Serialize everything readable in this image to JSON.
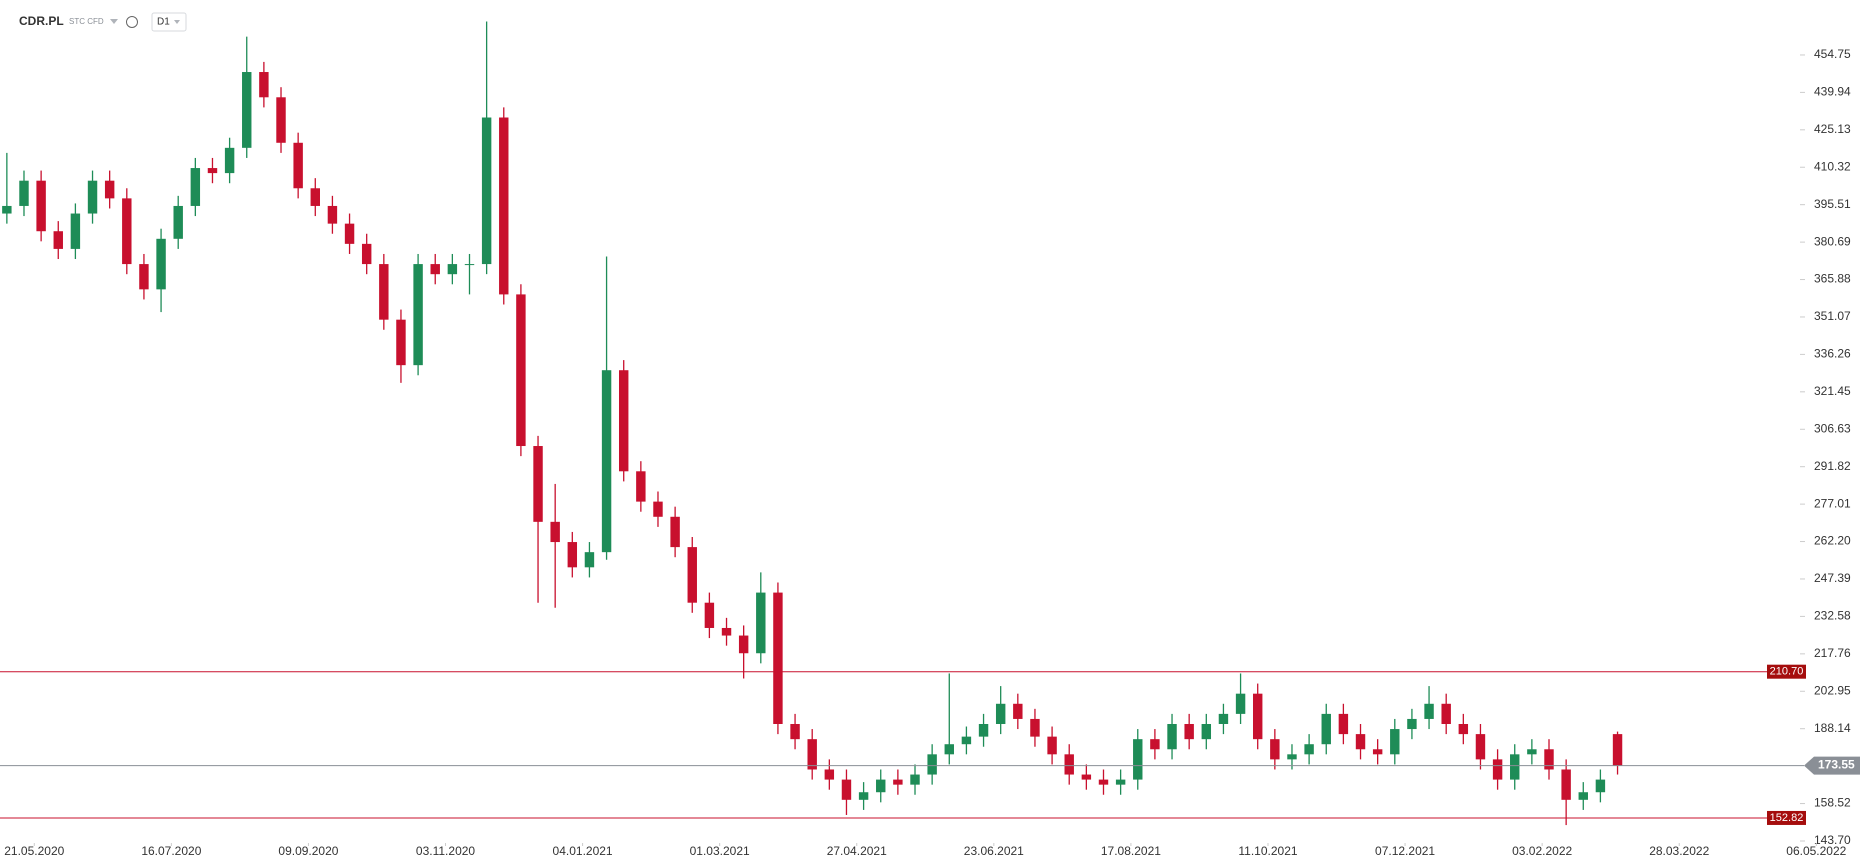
{
  "chart_data": {
    "type": "candlestick",
    "title": "CDR.PL",
    "subtitle": "STC CFD",
    "timeframe": "D1",
    "up_color": "#1e8c57",
    "down_color": "#c8102e",
    "xlim": [
      0,
      544.5
    ],
    "xticks": [
      {
        "value": 10,
        "label": "21.05.2020"
      },
      {
        "value": 50,
        "label": "16.07.2020"
      },
      {
        "value": 90,
        "label": "09.09.2020"
      },
      {
        "value": 130,
        "label": "03.11.2020"
      },
      {
        "value": 170,
        "label": "04.01.2021"
      },
      {
        "value": 210,
        "label": "01.03.2021"
      },
      {
        "value": 250,
        "label": "27.04.2021"
      },
      {
        "value": 290,
        "label": "23.06.2021"
      },
      {
        "value": 330,
        "label": "17.08.2021"
      },
      {
        "value": 370,
        "label": "11.10.2021"
      },
      {
        "value": 410,
        "label": "07.12.2021"
      },
      {
        "value": 450,
        "label": "03.02.2022"
      },
      {
        "value": 490,
        "label": "28.03.2022"
      },
      {
        "value": 530,
        "label": "06.05.2022"
      }
    ],
    "ylim": [
      143.7,
      476.5
    ],
    "yticks": [
      454.75,
      439.94,
      425.13,
      410.32,
      395.51,
      380.69,
      365.88,
      351.07,
      336.26,
      321.45,
      306.63,
      291.82,
      277.01,
      {
        "value": 262.2,
        "label": "262.20"
      },
      247.39,
      232.58,
      217.76,
      202.95,
      188.14,
      158.52,
      {
        "value": 143.7,
        "label": "143.70"
      }
    ],
    "hlines": [
      {
        "value": 210.7,
        "label": "210.70",
        "color": "#c8102e"
      },
      {
        "value": 152.82,
        "label": "152.82",
        "color": "#c8102e"
      },
      {
        "value": 173.55,
        "label": "173.55",
        "color": "#8a8f96"
      }
    ],
    "x": [
      2,
      7,
      12,
      17,
      22,
      27,
      32,
      37,
      42,
      47,
      52,
      57,
      62,
      67,
      72,
      77,
      82,
      87,
      92,
      97,
      102,
      107,
      112,
      117,
      122,
      127,
      132,
      137,
      142,
      147,
      152,
      157,
      162,
      167,
      172,
      177,
      182,
      187,
      192,
      197,
      202,
      207,
      212,
      217,
      222,
      227,
      232,
      237,
      242,
      247,
      252,
      257,
      262,
      267,
      272,
      277,
      282,
      287,
      292,
      297,
      302,
      307,
      312,
      317,
      322,
      327,
      332,
      337,
      342,
      347,
      352,
      357,
      362,
      367,
      372,
      377,
      382,
      387,
      392,
      397,
      402,
      407,
      412,
      417,
      422,
      427,
      432,
      437,
      442,
      447,
      452,
      457,
      462,
      467,
      472
    ],
    "open": [
      392,
      395,
      405,
      385,
      378,
      392,
      405,
      398,
      372,
      362,
      382,
      395,
      410,
      408,
      418,
      448,
      438,
      420,
      402,
      395,
      388,
      380,
      372,
      350,
      332,
      372,
      368,
      372,
      372,
      430,
      360,
      300,
      270,
      262,
      252,
      258,
      330,
      290,
      278,
      272,
      260,
      238,
      228,
      225,
      218,
      242,
      190,
      184,
      172,
      168,
      160,
      163,
      168,
      166,
      170,
      178,
      182,
      185,
      190,
      198,
      192,
      185,
      178,
      170,
      168,
      166,
      168,
      184,
      180,
      190,
      184,
      190,
      194,
      202,
      184,
      176,
      178,
      182,
      194,
      186,
      180,
      178,
      188,
      192,
      198,
      190,
      186,
      176,
      168,
      178,
      180,
      172,
      160,
      163,
      186
    ],
    "high": [
      416,
      409,
      409,
      389,
      396,
      409,
      409,
      402,
      376,
      386,
      399,
      414,
      414,
      422,
      462,
      452,
      442,
      424,
      406,
      399,
      392,
      384,
      376,
      354,
      376,
      376,
      376,
      376,
      468,
      434,
      364,
      304,
      285,
      266,
      262,
      375,
      334,
      294,
      282,
      276,
      264,
      242,
      232,
      229,
      250,
      246,
      194,
      188,
      176,
      172,
      167,
      172,
      172,
      174,
      182,
      210,
      189,
      194,
      205,
      202,
      196,
      189,
      182,
      174,
      172,
      172,
      188,
      188,
      194,
      194,
      194,
      198,
      210,
      206,
      188,
      182,
      186,
      198,
      198,
      190,
      184,
      192,
      196,
      205,
      202,
      194,
      190,
      180,
      182,
      184,
      184,
      176,
      167,
      172,
      187
    ],
    "low": [
      388,
      391,
      381,
      374,
      374,
      388,
      394,
      368,
      358,
      353,
      378,
      391,
      404,
      404,
      414,
      434,
      416,
      398,
      391,
      384,
      376,
      368,
      346,
      325,
      328,
      364,
      364,
      360,
      368,
      356,
      296,
      238,
      236,
      248,
      248,
      255,
      286,
      274,
      268,
      256,
      234,
      224,
      221,
      208,
      214,
      186,
      180,
      168,
      164,
      154,
      156,
      159,
      162,
      162,
      166,
      174,
      178,
      181,
      186,
      188,
      181,
      174,
      166,
      164,
      162,
      162,
      164,
      176,
      176,
      180,
      180,
      186,
      190,
      180,
      172,
      172,
      174,
      178,
      182,
      176,
      174,
      174,
      184,
      188,
      186,
      182,
      172,
      164,
      164,
      174,
      168,
      150,
      156,
      159,
      170
    ],
    "close": [
      395,
      405,
      385,
      378,
      392,
      405,
      398,
      372,
      362,
      382,
      395,
      410,
      408,
      418,
      448,
      438,
      420,
      402,
      395,
      388,
      380,
      372,
      350,
      332,
      372,
      368,
      372,
      372,
      430,
      360,
      300,
      270,
      262,
      252,
      258,
      330,
      290,
      278,
      272,
      260,
      238,
      228,
      225,
      218,
      242,
      190,
      184,
      172,
      168,
      160,
      163,
      168,
      166,
      170,
      178,
      182,
      185,
      190,
      198,
      192,
      185,
      178,
      170,
      168,
      166,
      168,
      184,
      180,
      190,
      184,
      190,
      194,
      202,
      184,
      176,
      178,
      182,
      194,
      186,
      180,
      178,
      188,
      192,
      198,
      190,
      186,
      176,
      168,
      178,
      180,
      172,
      160,
      163,
      168,
      173.55
    ]
  }
}
